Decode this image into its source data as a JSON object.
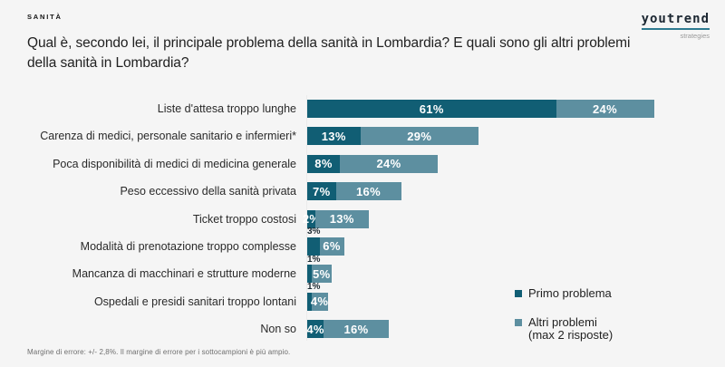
{
  "header": {
    "kicker": "SANITÀ",
    "title_lines": [
      "Qual è, secondo lei, il principale problema della sanità in Lombardia? E quali sono gli altri problemi",
      "della sanità in Lombardia?"
    ],
    "logo": {
      "wordmark": "youtrend",
      "subtitle": "strategies",
      "underline_color": "#2e7a90"
    }
  },
  "chart_data": {
    "type": "bar",
    "orientation": "horizontal",
    "stacked": true,
    "unit": "%",
    "xlim": [
      0,
      85
    ],
    "grid": false,
    "categories": [
      "Liste d'attesa troppo lunghe",
      "Carenza di medici, personale sanitario e infermieri*",
      "Poca disponibilità di medici di medicina generale",
      "Peso eccessivo della sanità privata",
      "Ticket troppo costosi",
      "Modalità di prenotazione troppo complesse",
      "Mancanza di macchinari e strutture moderne",
      "Ospedali e presidi sanitari troppo lontani",
      "Non so"
    ],
    "series": [
      {
        "name": "Primo problema",
        "color": "#115e74",
        "values": [
          61,
          13,
          8,
          7,
          2,
          3,
          1,
          1,
          4
        ]
      },
      {
        "name": "Altri problemi (max 2 risposte)",
        "color": "#5d8fa0",
        "values": [
          24,
          29,
          24,
          16,
          13,
          6,
          5,
          4,
          16
        ]
      }
    ],
    "value_label_format": "{v}%",
    "primo_label_placement": [
      "in",
      "in",
      "in",
      "in",
      "in",
      "above",
      "above",
      "above",
      "in"
    ],
    "legend_position": "right-bottom"
  },
  "legend": {
    "items": [
      {
        "label": "Primo problema",
        "color": "#115e74"
      },
      {
        "label": "Altri problemi",
        "label2": "(max 2 risposte)",
        "color": "#5d8fa0"
      }
    ]
  },
  "footer": {
    "note": "Margine di errore: +/- 2,8%. Il margine di errore per i sottocampioni è più ampio."
  }
}
